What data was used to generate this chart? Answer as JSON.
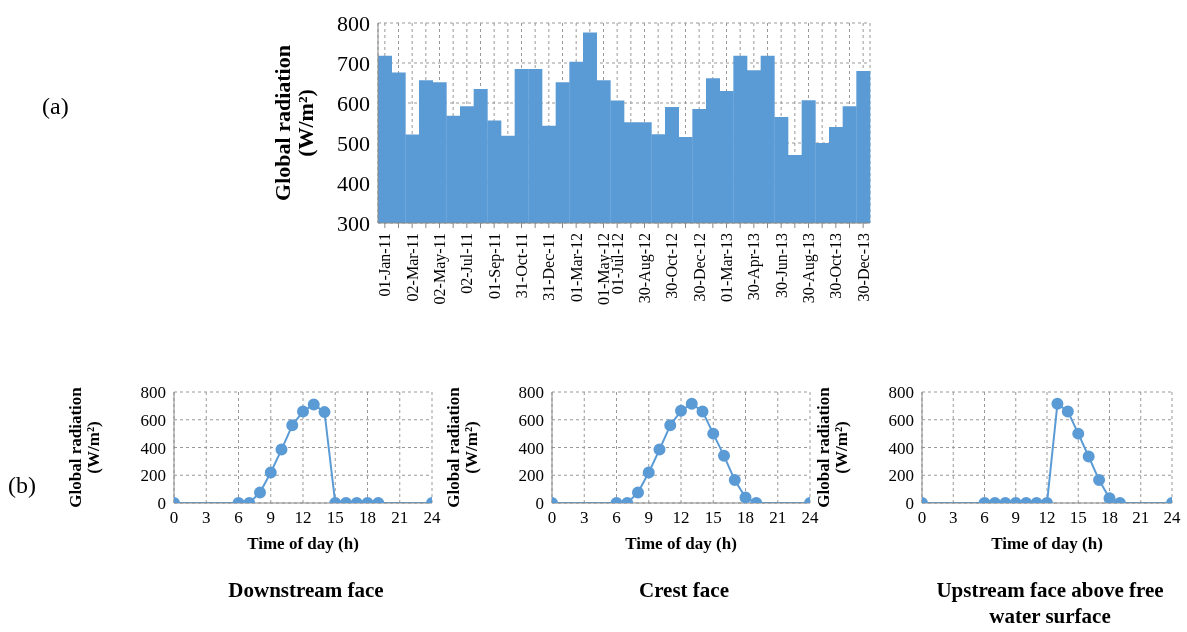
{
  "chart_data": [
    {
      "type": "bar",
      "ylabel": "Global radiation (W/m²)",
      "annotations": [
        "(a)"
      ],
      "categories": [
        "01-Jan-11",
        null,
        "02-Mar-11",
        null,
        "02-May-11",
        null,
        "02-Jul-11",
        null,
        "01-Sep-11",
        null,
        "31-Oct-11",
        null,
        "31-Dec-11",
        null,
        "01-Mar-12",
        null,
        "01-May-12",
        "01-Jul-12",
        null,
        "30-Aug-12",
        null,
        "30-Oct-12",
        null,
        "30-Dec-12",
        null,
        "01-Mar-13",
        null,
        "30-Apr-13",
        null,
        "30-Jun-13",
        null,
        "30-Aug-13",
        null,
        "30-Oct-13",
        null,
        "30-Dec-13"
      ],
      "series": [
        {
          "color": "#5b9bd5",
          "values": [
            718,
            676,
            521,
            657,
            652,
            568,
            592,
            635,
            556,
            518,
            685,
            685,
            543,
            652,
            703,
            776,
            657,
            606,
            552,
            552,
            522,
            590,
            515,
            585,
            662,
            630,
            718,
            682,
            718,
            565,
            470,
            607,
            500,
            540,
            592,
            680
          ]
        }
      ],
      "ylim": [
        300,
        800
      ],
      "yticks": [
        300,
        400,
        500,
        600,
        700,
        800
      ],
      "grid": true
    },
    {
      "type": "line",
      "title": "Downstream face",
      "xlabel": "Time of day (h)",
      "ylabel": "Global radiation (W/m²)",
      "annotations": [
        "(b)"
      ],
      "x": [
        0,
        6,
        7,
        8,
        9,
        10,
        11,
        12,
        13,
        14,
        15,
        16,
        17,
        18,
        19,
        24
      ],
      "series": [
        {
          "color": "#5b9bd5",
          "values": [
            0,
            0,
            0,
            75,
            220,
            385,
            560,
            660,
            710,
            655,
            0,
            0,
            0,
            0,
            0,
            0
          ]
        }
      ],
      "xlim": [
        0,
        24
      ],
      "xticks": [
        0,
        3,
        6,
        9,
        12,
        15,
        18,
        21,
        24
      ],
      "ylim": [
        0,
        800
      ],
      "yticks": [
        0,
        200,
        400,
        600,
        800
      ],
      "grid": true,
      "marker": "circle",
      "line_style": "solid"
    },
    {
      "type": "line",
      "title": "Crest face",
      "xlabel": "Time of day (h)",
      "ylabel": "Global radiation (W/m²)",
      "x": [
        0,
        6,
        7,
        8,
        9,
        10,
        11,
        12,
        13,
        14,
        15,
        16,
        17,
        18,
        19,
        24
      ],
      "series": [
        {
          "color": "#5b9bd5",
          "values": [
            0,
            0,
            0,
            75,
            220,
            385,
            560,
            665,
            715,
            660,
            500,
            340,
            165,
            40,
            0,
            0
          ]
        }
      ],
      "xlim": [
        0,
        24
      ],
      "xticks": [
        0,
        3,
        6,
        9,
        12,
        15,
        18,
        21,
        24
      ],
      "ylim": [
        0,
        800
      ],
      "yticks": [
        0,
        200,
        400,
        600,
        800
      ],
      "grid": true,
      "marker": "circle",
      "line_style": "solid"
    },
    {
      "type": "line",
      "title": "Upstream face above free water surface",
      "xlabel": "Time of day (h)",
      "ylabel": "Global radiation (W/m²)",
      "x": [
        0,
        6,
        7,
        8,
        9,
        10,
        11,
        12,
        13,
        14,
        15,
        16,
        17,
        18,
        19,
        24
      ],
      "series": [
        {
          "color": "#5b9bd5",
          "values": [
            0,
            0,
            0,
            0,
            0,
            0,
            0,
            0,
            715,
            660,
            500,
            335,
            165,
            35,
            0,
            0
          ]
        }
      ],
      "xlim": [
        0,
        24
      ],
      "xticks": [
        0,
        3,
        6,
        9,
        12,
        15,
        18,
        21,
        24
      ],
      "ylim": [
        0,
        800
      ],
      "yticks": [
        0,
        200,
        400,
        600,
        800
      ],
      "grid": true,
      "marker": "circle",
      "line_style": "solid"
    }
  ]
}
